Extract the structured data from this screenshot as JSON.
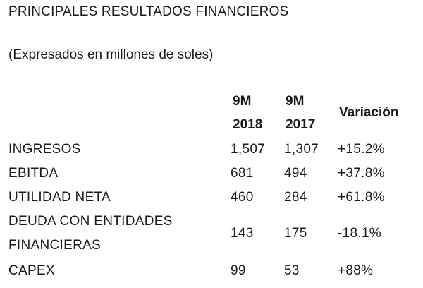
{
  "title": "PRINCIPALES RESULTADOS FINANCIEROS",
  "subtitle": "(Expresados en millones de soles)",
  "table": {
    "headers": {
      "col_2018": [
        "9M",
        "2018"
      ],
      "col_2017": [
        "9M",
        "2017"
      ],
      "col_var": "Variación"
    },
    "rows": [
      {
        "label": [
          "INGRESOS"
        ],
        "v2018": "1,507",
        "v2017": "1,307",
        "var": "+15.2%"
      },
      {
        "label": [
          "EBITDA"
        ],
        "v2018": "681",
        "v2017": "494",
        "var": "+37.8%"
      },
      {
        "label": [
          "UTILIDAD NETA"
        ],
        "v2018": "460",
        "v2017": "284",
        "var": "+61.8%"
      },
      {
        "label": [
          "DEUDA CON ENTIDADES",
          "FINANCIERAS"
        ],
        "v2018": "143",
        "v2017": "175",
        "var": "-18.1%"
      },
      {
        "label": [
          "CAPEX"
        ],
        "v2018": "99",
        "v2017": "53",
        "var": "+88%"
      }
    ]
  }
}
